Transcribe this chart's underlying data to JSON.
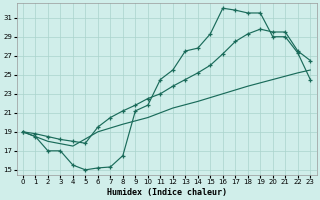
{
  "xlabel": "Humidex (Indice chaleur)",
  "bg_color": "#d0eeea",
  "grid_color": "#aad4cc",
  "line_color": "#1a6b5a",
  "xlim": [
    -0.5,
    23.5
  ],
  "ylim": [
    14.5,
    32.5
  ],
  "xticks": [
    0,
    1,
    2,
    3,
    4,
    5,
    6,
    7,
    8,
    9,
    10,
    11,
    12,
    13,
    14,
    15,
    16,
    17,
    18,
    19,
    20,
    21,
    22,
    23
  ],
  "yticks": [
    15,
    17,
    19,
    21,
    23,
    25,
    27,
    29,
    31
  ],
  "curve1_x": [
    0,
    1,
    2,
    3,
    4,
    5,
    6,
    7,
    8,
    9,
    10,
    11,
    12,
    13,
    14,
    15,
    16,
    17,
    18,
    19,
    20,
    21,
    22,
    23
  ],
  "curve1_y": [
    19.0,
    18.5,
    17.0,
    17.0,
    15.5,
    15.0,
    15.2,
    15.3,
    16.5,
    21.2,
    21.8,
    24.5,
    25.5,
    27.5,
    27.8,
    29.3,
    32.0,
    31.8,
    31.5,
    31.5,
    29.0,
    29.0,
    27.3,
    24.5
  ],
  "curve2_x": [
    0,
    1,
    2,
    3,
    4,
    5,
    6,
    7,
    8,
    9,
    10,
    11,
    12,
    13,
    14,
    15,
    16,
    17,
    18,
    19,
    20,
    21,
    22,
    23
  ],
  "curve2_y": [
    19.0,
    18.8,
    18.5,
    18.2,
    18.0,
    17.8,
    19.5,
    20.5,
    21.2,
    21.8,
    22.5,
    23.0,
    23.8,
    24.5,
    25.2,
    26.0,
    27.2,
    28.5,
    29.3,
    29.8,
    29.5,
    29.5,
    27.5,
    26.5
  ],
  "curve3_x": [
    0,
    2,
    4,
    6,
    8,
    10,
    12,
    14,
    16,
    18,
    20,
    22,
    23
  ],
  "curve3_y": [
    19.0,
    18.0,
    17.5,
    19.0,
    19.8,
    20.5,
    21.5,
    22.2,
    23.0,
    23.8,
    24.5,
    25.2,
    25.5
  ]
}
